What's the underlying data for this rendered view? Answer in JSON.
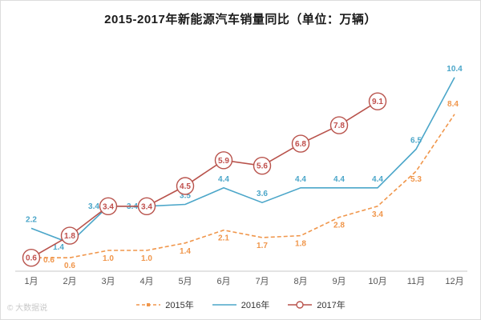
{
  "title": "2015-2017年新能源汽车销量同比（单位：万辆）",
  "watermark": "© 大数据说",
  "chart_data": {
    "type": "line",
    "title": "2015-2017年新能源汽车销量同比（单位：万辆）",
    "unit": "万辆",
    "categories": [
      "1月",
      "2月",
      "3月",
      "4月",
      "5月",
      "6月",
      "7月",
      "8月",
      "9月",
      "10月",
      "11月",
      "12月"
    ],
    "ylim": [
      0,
      11
    ],
    "grid": false,
    "legend_position": "bottom",
    "series": [
      {
        "name": "2015年",
        "values": [
          0.6,
          0.6,
          1.0,
          1.0,
          1.4,
          2.1,
          1.7,
          1.8,
          2.8,
          3.4,
          5.3,
          8.4
        ],
        "color": "#F0964B",
        "dash": true,
        "label_dy": 13,
        "label_offsets": {
          "0": [
            22,
            6
          ],
          "11": [
            -2,
            -10
          ]
        }
      },
      {
        "name": "2016年",
        "values": [
          2.2,
          1.4,
          3.4,
          3.4,
          3.5,
          4.4,
          3.6,
          4.4,
          4.4,
          4.4,
          6.5,
          10.4
        ],
        "color": "#4BA6C9",
        "label_dy": -8,
        "label_offsets": {
          "1": [
            -14,
            8
          ],
          "2": [
            -18,
            3
          ],
          "3": [
            -18,
            3
          ]
        }
      },
      {
        "name": "2017年",
        "values": [
          0.6,
          1.8,
          3.4,
          3.4,
          4.5,
          5.9,
          5.6,
          6.8,
          7.8,
          9.1
        ],
        "color": "#B8524B",
        "marker": "circle",
        "label_color": "#C0504D"
      }
    ]
  }
}
